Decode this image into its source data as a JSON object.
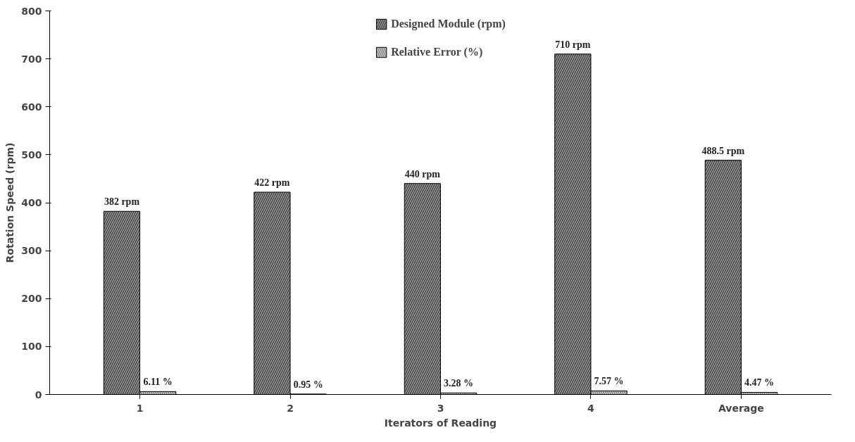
{
  "chart_data": {
    "type": "bar",
    "xlabel": "Iterators of Reading",
    "ylabel": "Rotation Speed (rpm)",
    "categories": [
      "1",
      "2",
      "3",
      "4",
      "Average"
    ],
    "series": [
      {
        "name": "Designed Module (rpm)",
        "color": "#3a3a3a",
        "values": [
          382,
          422,
          440,
          710,
          488.5
        ],
        "value_labels": [
          "382 rpm",
          "422 rpm",
          "440 rpm",
          "710 rpm",
          "488.5 rpm"
        ]
      },
      {
        "name": "Relative Error (%)",
        "color": "#d9d9d9",
        "values": [
          6.11,
          0.95,
          3.28,
          7.57,
          4.47
        ],
        "value_labels": [
          "6.11 %",
          "0.95 %",
          "3.28 %",
          "7.57 %",
          "4.47 %"
        ]
      }
    ],
    "ylim": [
      0,
      800
    ],
    "yticks": [
      0,
      100,
      200,
      300,
      400,
      500,
      600,
      700,
      800
    ],
    "grid": false,
    "legend": "top"
  }
}
